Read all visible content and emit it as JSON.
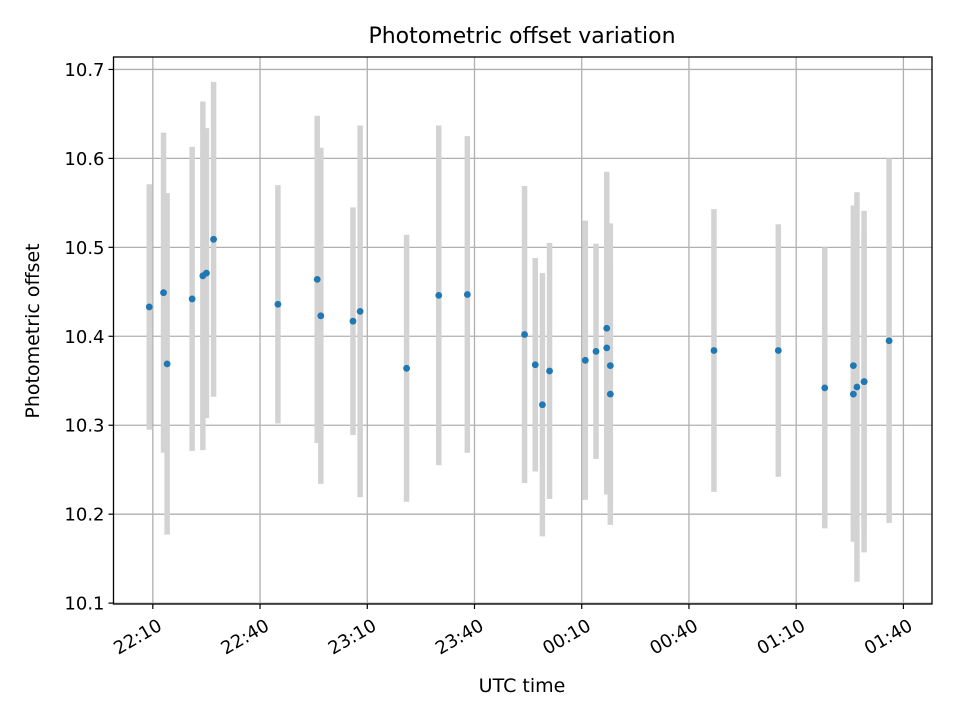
{
  "chart_data": {
    "type": "scatter",
    "title": "Photometric offset variation",
    "xlabel": "UTC time",
    "ylabel": "Photometric offset",
    "x_ticks": [
      "22:10",
      "22:40",
      "23:10",
      "23:40",
      "00:10",
      "00:40",
      "01:10",
      "01:40"
    ],
    "y_ticks": [
      "10.1",
      "10.2",
      "10.3",
      "10.4",
      "10.5",
      "10.6",
      "10.7"
    ],
    "xlim": [
      "21:59",
      "01:48"
    ],
    "ylim": [
      10.099,
      10.714
    ],
    "grid": true,
    "marker_color": "#1f77b4",
    "errorbar_color": "#d3d3d3",
    "points": [
      {
        "x": "22:09",
        "y": 10.433,
        "err": 0.138
      },
      {
        "x": "22:13",
        "y": 10.449,
        "err": 0.18
      },
      {
        "x": "22:14",
        "y": 10.369,
        "err": 0.192
      },
      {
        "x": "22:21",
        "y": 10.442,
        "err": 0.171
      },
      {
        "x": "22:24",
        "y": 10.468,
        "err": 0.196
      },
      {
        "x": "22:25",
        "y": 10.471,
        "err": 0.163
      },
      {
        "x": "22:27",
        "y": 10.509,
        "err": 0.177
      },
      {
        "x": "22:45",
        "y": 10.436,
        "err": 0.134
      },
      {
        "x": "22:56",
        "y": 10.464,
        "err": 0.184
      },
      {
        "x": "22:57",
        "y": 10.423,
        "err": 0.189
      },
      {
        "x": "23:06",
        "y": 10.417,
        "err": 0.128
      },
      {
        "x": "23:08",
        "y": 10.428,
        "err": 0.209
      },
      {
        "x": "23:21",
        "y": 10.364,
        "err": 0.15
      },
      {
        "x": "23:30",
        "y": 10.446,
        "err": 0.191
      },
      {
        "x": "23:38",
        "y": 10.447,
        "err": 0.178
      },
      {
        "x": "23:54",
        "y": 10.402,
        "err": 0.167
      },
      {
        "x": "23:57",
        "y": 10.368,
        "err": 0.12
      },
      {
        "x": "23:59",
        "y": 10.323,
        "err": 0.148
      },
      {
        "x": "00:01",
        "y": 10.361,
        "err": 0.144
      },
      {
        "x": "00:11",
        "y": 10.373,
        "err": 0.157
      },
      {
        "x": "00:14",
        "y": 10.383,
        "err": 0.121
      },
      {
        "x": "00:17",
        "y": 10.409,
        "err": 0.176
      },
      {
        "x": "00:17",
        "y": 10.387,
        "err": 0.165
      },
      {
        "x": "00:18",
        "y": 10.367,
        "err": 0.16
      },
      {
        "x": "00:18",
        "y": 10.335,
        "err": 0.147
      },
      {
        "x": "00:47",
        "y": 10.384,
        "err": 0.159
      },
      {
        "x": "01:05",
        "y": 10.384,
        "err": 0.142
      },
      {
        "x": "01:18",
        "y": 10.342,
        "err": 0.158
      },
      {
        "x": "01:26",
        "y": 10.367,
        "err": 0.18
      },
      {
        "x": "01:26",
        "y": 10.335,
        "err": 0.166
      },
      {
        "x": "01:27",
        "y": 10.343,
        "err": 0.219
      },
      {
        "x": "01:29",
        "y": 10.349,
        "err": 0.192
      },
      {
        "x": "01:29",
        "y": 10.349,
        "err": 0.166
      },
      {
        "x": "01:36",
        "y": 10.395,
        "err": 0.205
      }
    ]
  }
}
